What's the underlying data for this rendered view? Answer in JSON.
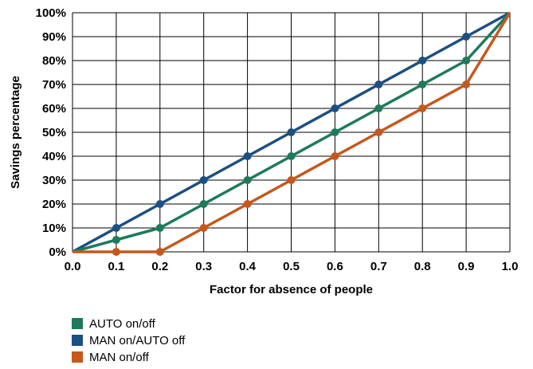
{
  "chart_data": {
    "type": "line",
    "x": [
      0.0,
      0.1,
      0.2,
      0.3,
      0.4,
      0.5,
      0.6,
      0.7,
      0.8,
      0.9,
      1.0
    ],
    "x_tick_labels": [
      "0.0",
      "0.1",
      "0.2",
      "0.3",
      "0.4",
      "0.5",
      "0.6",
      "0.7",
      "0.8",
      "0.9",
      "1.0"
    ],
    "y_tick_labels": [
      "0%",
      "10%",
      "20%",
      "30%",
      "40%",
      "50%",
      "60%",
      "70%",
      "80%",
      "90%",
      "100%"
    ],
    "xlabel": "Factor for absence of people",
    "ylabel": "Savings percentage",
    "xlim": [
      0,
      1
    ],
    "ylim": [
      0,
      100
    ],
    "grid": true,
    "legend_position": "bottom-left",
    "series": [
      {
        "name": "MAN on/AUTO off",
        "color": "#1c4f82",
        "values": [
          0,
          10,
          20,
          30,
          40,
          50,
          60,
          70,
          80,
          90,
          100
        ]
      },
      {
        "name": "AUTO on/off",
        "color": "#1e7a5a",
        "values": [
          0,
          5,
          10,
          20,
          30,
          40,
          50,
          60,
          70,
          80,
          100
        ]
      },
      {
        "name": "MAN on/off",
        "color": "#c4581d",
        "values": [
          0,
          0,
          0,
          10,
          20,
          30,
          40,
          50,
          60,
          70,
          100
        ]
      }
    ],
    "legend_order": [
      1,
      0,
      2
    ]
  }
}
